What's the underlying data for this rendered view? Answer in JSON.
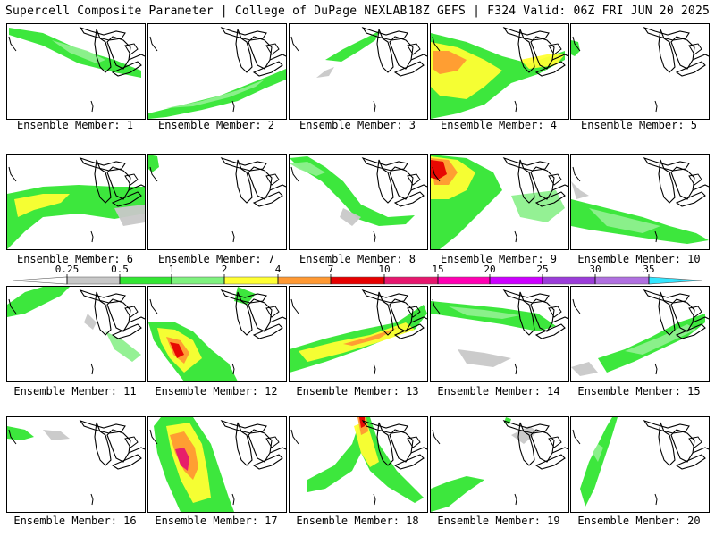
{
  "header": {
    "left_title": "Supercell Composite Parameter | College of DuPage NEXLAB",
    "right_title": "18Z GEFS | F324 Valid: 06Z FRI JUN 20 2025"
  },
  "colorbar": {
    "levels": [
      "0.25",
      "0.5",
      "1",
      "2",
      "4",
      "7",
      "10",
      "15",
      "20",
      "25",
      "30",
      "35"
    ],
    "colors": [
      "#c8c8c8",
      "#33e633",
      "#7ff27f",
      "#ffff33",
      "#ff9933",
      "#e60000",
      "#e6176e",
      "#ff00b3",
      "#cc00ff",
      "#9b3dd9",
      "#b070e0",
      "#33e6ff"
    ]
  },
  "colors": {
    "light_gray": "#c8c8c8",
    "green": "#33e633",
    "light_green": "#8ef08e",
    "yellow": "#ffff33",
    "orange": "#ff9933",
    "red": "#e60000",
    "magenta": "#e6176e"
  },
  "members": [
    {
      "label": "Ensemble Member: 1"
    },
    {
      "label": "Ensemble Member: 2"
    },
    {
      "label": "Ensemble Member: 3"
    },
    {
      "label": "Ensemble Member: 4"
    },
    {
      "label": "Ensemble Member: 5"
    },
    {
      "label": "Ensemble Member: 6"
    },
    {
      "label": "Ensemble Member: 7"
    },
    {
      "label": "Ensemble Member: 8"
    },
    {
      "label": "Ensemble Member: 9"
    },
    {
      "label": "Ensemble Member: 10"
    },
    {
      "label": "Ensemble Member: 11"
    },
    {
      "label": "Ensemble Member: 12"
    },
    {
      "label": "Ensemble Member: 13"
    },
    {
      "label": "Ensemble Member: 14"
    },
    {
      "label": "Ensemble Member: 15"
    },
    {
      "label": "Ensemble Member: 16"
    },
    {
      "label": "Ensemble Member: 17"
    },
    {
      "label": "Ensemble Member: 18"
    },
    {
      "label": "Ensemble Member: 19"
    },
    {
      "label": "Ensemble Member: 20"
    }
  ]
}
